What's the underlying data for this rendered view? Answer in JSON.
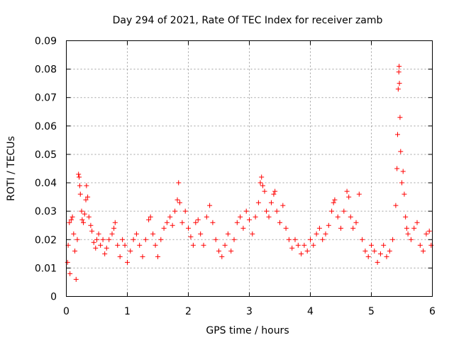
{
  "chart_data": {
    "type": "scatter",
    "title": "Day 294 of 2021, Rate Of TEC Index for receiver zamb",
    "xlabel": "GPS time / hours",
    "ylabel": "ROTI / TECUs",
    "xlim": [
      0,
      6
    ],
    "ylim": [
      0,
      0.09
    ],
    "x_ticks": [
      "0",
      "1",
      "2",
      "3",
      "4",
      "5",
      "6"
    ],
    "y_ticks": [
      "0",
      "0.01",
      "0.02",
      "0.03",
      "0.04",
      "0.05",
      "0.06",
      "0.07",
      "0.08",
      "0.09"
    ],
    "grid": true,
    "marker": "+",
    "series": [
      {
        "name": "ROTI",
        "color": "#ff0000",
        "points": [
          [
            0.02,
            0.012
          ],
          [
            0.03,
            0.018
          ],
          [
            0.05,
            0.026
          ],
          [
            0.06,
            0.008
          ],
          [
            0.08,
            0.027
          ],
          [
            0.1,
            0.028
          ],
          [
            0.12,
            0.022
          ],
          [
            0.14,
            0.016
          ],
          [
            0.16,
            0.006
          ],
          [
            0.18,
            0.02
          ],
          [
            0.2,
            0.043
          ],
          [
            0.21,
            0.042
          ],
          [
            0.22,
            0.039
          ],
          [
            0.23,
            0.036
          ],
          [
            0.25,
            0.03
          ],
          [
            0.26,
            0.027
          ],
          [
            0.28,
            0.026
          ],
          [
            0.3,
            0.029
          ],
          [
            0.32,
            0.034
          ],
          [
            0.33,
            0.039
          ],
          [
            0.35,
            0.035
          ],
          [
            0.37,
            0.028
          ],
          [
            0.4,
            0.025
          ],
          [
            0.42,
            0.023
          ],
          [
            0.45,
            0.019
          ],
          [
            0.48,
            0.017
          ],
          [
            0.5,
            0.02
          ],
          [
            0.53,
            0.022
          ],
          [
            0.56,
            0.018
          ],
          [
            0.6,
            0.02
          ],
          [
            0.63,
            0.015
          ],
          [
            0.66,
            0.017
          ],
          [
            0.7,
            0.02
          ],
          [
            0.75,
            0.022
          ],
          [
            0.78,
            0.024
          ],
          [
            0.8,
            0.026
          ],
          [
            0.84,
            0.018
          ],
          [
            0.88,
            0.014
          ],
          [
            0.92,
            0.02
          ],
          [
            0.96,
            0.018
          ],
          [
            1.0,
            0.012
          ],
          [
            1.05,
            0.016
          ],
          [
            1.1,
            0.02
          ],
          [
            1.15,
            0.022
          ],
          [
            1.2,
            0.018
          ],
          [
            1.25,
            0.014
          ],
          [
            1.3,
            0.02
          ],
          [
            1.35,
            0.027
          ],
          [
            1.38,
            0.028
          ],
          [
            1.42,
            0.022
          ],
          [
            1.46,
            0.018
          ],
          [
            1.5,
            0.014
          ],
          [
            1.55,
            0.02
          ],
          [
            1.6,
            0.024
          ],
          [
            1.65,
            0.026
          ],
          [
            1.7,
            0.028
          ],
          [
            1.74,
            0.025
          ],
          [
            1.78,
            0.03
          ],
          [
            1.82,
            0.034
          ],
          [
            1.84,
            0.04
          ],
          [
            1.86,
            0.033
          ],
          [
            1.9,
            0.026
          ],
          [
            1.95,
            0.03
          ],
          [
            2.0,
            0.024
          ],
          [
            2.04,
            0.021
          ],
          [
            2.08,
            0.018
          ],
          [
            2.12,
            0.026
          ],
          [
            2.16,
            0.027
          ],
          [
            2.2,
            0.022
          ],
          [
            2.25,
            0.018
          ],
          [
            2.3,
            0.028
          ],
          [
            2.35,
            0.032
          ],
          [
            2.4,
            0.026
          ],
          [
            2.45,
            0.02
          ],
          [
            2.5,
            0.016
          ],
          [
            2.55,
            0.014
          ],
          [
            2.6,
            0.018
          ],
          [
            2.65,
            0.022
          ],
          [
            2.7,
            0.016
          ],
          [
            2.75,
            0.02
          ],
          [
            2.8,
            0.026
          ],
          [
            2.85,
            0.028
          ],
          [
            2.9,
            0.024
          ],
          [
            2.95,
            0.03
          ],
          [
            3.0,
            0.027
          ],
          [
            3.05,
            0.022
          ],
          [
            3.1,
            0.028
          ],
          [
            3.15,
            0.033
          ],
          [
            3.18,
            0.04
          ],
          [
            3.2,
            0.042
          ],
          [
            3.22,
            0.039
          ],
          [
            3.25,
            0.037
          ],
          [
            3.28,
            0.03
          ],
          [
            3.32,
            0.028
          ],
          [
            3.36,
            0.033
          ],
          [
            3.4,
            0.036
          ],
          [
            3.42,
            0.037
          ],
          [
            3.45,
            0.03
          ],
          [
            3.5,
            0.026
          ],
          [
            3.55,
            0.032
          ],
          [
            3.6,
            0.024
          ],
          [
            3.65,
            0.02
          ],
          [
            3.7,
            0.017
          ],
          [
            3.75,
            0.02
          ],
          [
            3.8,
            0.018
          ],
          [
            3.85,
            0.015
          ],
          [
            3.9,
            0.018
          ],
          [
            3.95,
            0.016
          ],
          [
            4.0,
            0.02
          ],
          [
            4.05,
            0.018
          ],
          [
            4.1,
            0.022
          ],
          [
            4.15,
            0.024
          ],
          [
            4.2,
            0.02
          ],
          [
            4.25,
            0.022
          ],
          [
            4.3,
            0.025
          ],
          [
            4.35,
            0.03
          ],
          [
            4.38,
            0.033
          ],
          [
            4.4,
            0.034
          ],
          [
            4.45,
            0.028
          ],
          [
            4.5,
            0.024
          ],
          [
            4.55,
            0.03
          ],
          [
            4.6,
            0.037
          ],
          [
            4.63,
            0.035
          ],
          [
            4.66,
            0.028
          ],
          [
            4.7,
            0.024
          ],
          [
            4.75,
            0.026
          ],
          [
            4.8,
            0.036
          ],
          [
            4.85,
            0.02
          ],
          [
            4.9,
            0.016
          ],
          [
            4.95,
            0.014
          ],
          [
            5.0,
            0.018
          ],
          [
            5.05,
            0.016
          ],
          [
            5.1,
            0.012
          ],
          [
            5.15,
            0.015
          ],
          [
            5.2,
            0.018
          ],
          [
            5.25,
            0.014
          ],
          [
            5.3,
            0.016
          ],
          [
            5.35,
            0.02
          ],
          [
            5.4,
            0.032
          ],
          [
            5.42,
            0.045
          ],
          [
            5.43,
            0.057
          ],
          [
            5.44,
            0.073
          ],
          [
            5.45,
            0.079
          ],
          [
            5.455,
            0.081
          ],
          [
            5.46,
            0.075
          ],
          [
            5.47,
            0.063
          ],
          [
            5.48,
            0.051
          ],
          [
            5.5,
            0.04
          ],
          [
            5.52,
            0.044
          ],
          [
            5.54,
            0.036
          ],
          [
            5.56,
            0.028
          ],
          [
            5.58,
            0.024
          ],
          [
            5.6,
            0.022
          ],
          [
            5.65,
            0.02
          ],
          [
            5.7,
            0.024
          ],
          [
            5.75,
            0.026
          ],
          [
            5.8,
            0.018
          ],
          [
            5.85,
            0.016
          ],
          [
            5.9,
            0.022
          ],
          [
            5.95,
            0.023
          ],
          [
            5.98,
            0.018
          ]
        ]
      }
    ]
  }
}
